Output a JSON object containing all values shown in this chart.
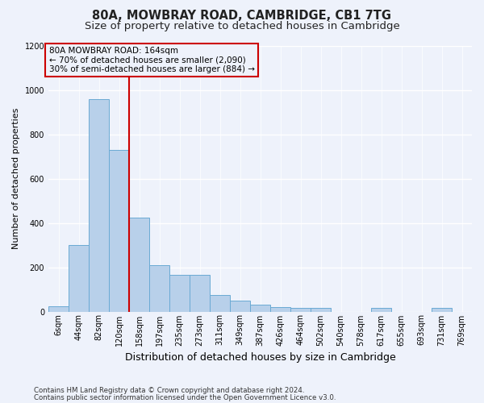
{
  "title1": "80A, MOWBRAY ROAD, CAMBRIDGE, CB1 7TG",
  "title2": "Size of property relative to detached houses in Cambridge",
  "xlabel": "Distribution of detached houses by size in Cambridge",
  "ylabel": "Number of detached properties",
  "footnote1": "Contains HM Land Registry data © Crown copyright and database right 2024.",
  "footnote2": "Contains public sector information licensed under the Open Government Licence v3.0.",
  "bin_labels": [
    "6sqm",
    "44sqm",
    "82sqm",
    "120sqm",
    "158sqm",
    "197sqm",
    "235sqm",
    "273sqm",
    "311sqm",
    "349sqm",
    "387sqm",
    "426sqm",
    "464sqm",
    "502sqm",
    "540sqm",
    "578sqm",
    "617sqm",
    "655sqm",
    "693sqm",
    "731sqm",
    "769sqm"
  ],
  "bar_values": [
    25,
    300,
    960,
    730,
    425,
    210,
    165,
    165,
    75,
    50,
    30,
    20,
    15,
    15,
    0,
    0,
    15,
    0,
    0,
    15,
    0
  ],
  "bar_color": "#b8d0ea",
  "bar_edge_color": "#6aaad4",
  "vline_x": 4.0,
  "vline_color": "#cc0000",
  "annotation_line1": "80A MOWBRAY ROAD: 164sqm",
  "annotation_line2": "← 70% of detached houses are smaller (2,090)",
  "annotation_line3": "30% of semi-detached houses are larger (884) →",
  "annotation_box_color": "#cc0000",
  "ylim": [
    0,
    1200
  ],
  "yticks": [
    0,
    200,
    400,
    600,
    800,
    1000,
    1200
  ],
  "background_color": "#eef2fb",
  "grid_color": "#ffffff",
  "title1_fontsize": 10.5,
  "title2_fontsize": 9.5,
  "ylabel_fontsize": 8,
  "xlabel_fontsize": 9,
  "tick_fontsize": 7,
  "annot_fontsize": 7.5
}
